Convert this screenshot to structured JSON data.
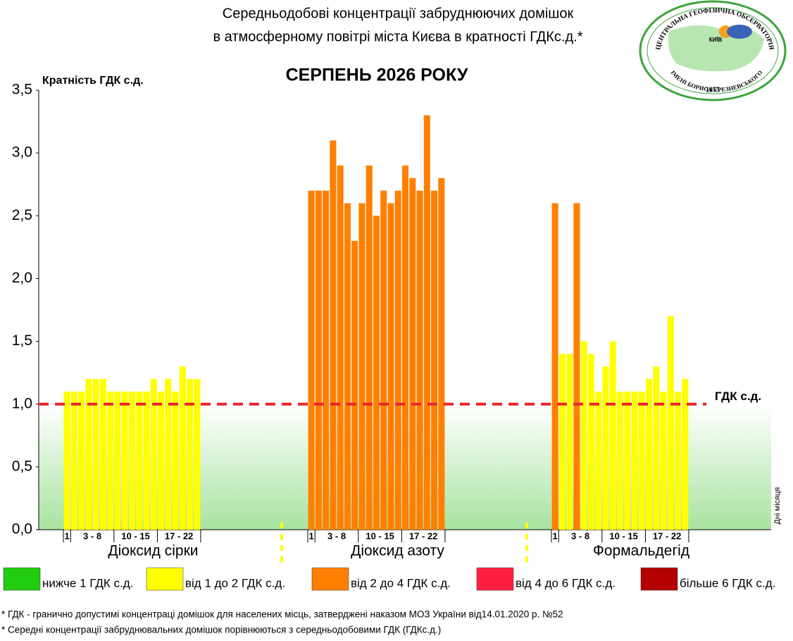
{
  "chart_data": {
    "type": "bar",
    "title": [
      "Середньодобові концентрації забруднюючих домішок",
      "в атмосферному повітрі міста Києва в кратності ГДКс.д.*"
    ],
    "subtitle": "СЕРПЕНЬ 2026 РОКУ",
    "y_label": "Кратність ГДК с.д.",
    "x_label": "Дні місяця",
    "ylim": [
      0,
      3.5
    ],
    "yticks": [
      {
        "value": 0,
        "label": "0,0"
      },
      {
        "value": 0.5,
        "label": "0,5"
      },
      {
        "value": 1,
        "label": "1,0"
      },
      {
        "value": 1.5,
        "label": "1,5"
      },
      {
        "value": 2,
        "label": "2,0"
      },
      {
        "value": 2.5,
        "label": "2,5"
      },
      {
        "value": 3,
        "label": "3,0"
      },
      {
        "value": 3.5,
        "label": "3,5"
      }
    ],
    "reference_line": {
      "value": 1,
      "label": "ГДК с.д.",
      "color": "#e8262a"
    },
    "groups": [
      {
        "name": "Діоксид сірки",
        "day_labels": [
          "1",
          "3 - 8",
          "10 - 15",
          "17 - 22"
        ],
        "values": [
          1.1,
          1.1,
          1.1,
          1.2,
          1.2,
          1.2,
          1.1,
          1.1,
          1.1,
          1.1,
          1.1,
          1.1,
          1.2,
          1.1,
          1.2,
          1.1,
          1.3,
          1.2,
          1.2
        ],
        "colors": [
          "#ffff00",
          "#ffff00",
          "#ffff00",
          "#ffff00",
          "#ffff00",
          "#ffff00",
          "#ffff00",
          "#ffff00",
          "#ffff00",
          "#ffff00",
          "#ffff00",
          "#ffff00",
          "#ffff00",
          "#ffff00",
          "#ffff00",
          "#ffff00",
          "#ffff00",
          "#ffff00",
          "#ffff00"
        ]
      },
      {
        "name": "Діоксид азоту",
        "day_labels": [
          "1",
          "3 - 8",
          "10 - 15",
          "17 - 22"
        ],
        "values": [
          2.7,
          2.7,
          2.7,
          3.1,
          2.9,
          2.6,
          2.3,
          2.6,
          2.9,
          2.5,
          2.7,
          2.6,
          2.7,
          2.9,
          2.8,
          2.7,
          3.3,
          2.7,
          2.8
        ],
        "colors": [
          "#ff8000",
          "#ff8000",
          "#ff8000",
          "#ff8000",
          "#ff8000",
          "#ff8000",
          "#ff8000",
          "#ff8000",
          "#ff8000",
          "#ff8000",
          "#ff8000",
          "#ff8000",
          "#ff8000",
          "#ff8000",
          "#ff8000",
          "#ff8000",
          "#ff8000",
          "#ff8000",
          "#ff8000"
        ]
      },
      {
        "name": "Формальдегід",
        "day_labels": [
          "1",
          "3 - 8",
          "10 - 15",
          "17 - 22"
        ],
        "values": [
          2.6,
          1.4,
          1.4,
          2.6,
          1.5,
          1.4,
          1.1,
          1.3,
          1.5,
          1.1,
          1.1,
          1.1,
          1.1,
          1.2,
          1.3,
          1.1,
          1.7,
          1.1,
          1.2
        ],
        "colors": [
          "#ff8000",
          "#ffff00",
          "#ffff00",
          "#ff8000",
          "#ffff00",
          "#ffff00",
          "#ffff00",
          "#ffff00",
          "#ffff00",
          "#ffff00",
          "#ffff00",
          "#ffff00",
          "#ffff00",
          "#ffff00",
          "#ffff00",
          "#ffff00",
          "#ffff00",
          "#ffff00",
          "#ffff00"
        ]
      }
    ],
    "legend": [
      {
        "label": "нижче 1 ГДК с.д.",
        "color": "#22cc11"
      },
      {
        "label": "від 1 до 2 ГДК с.д.",
        "color": "#ffff00"
      },
      {
        "label": "від 2 до 4 ГДК с.д.",
        "color": "#ff8000"
      },
      {
        "label": "від 4 до 6 ГДК с.д.",
        "color": "#ff1f40"
      },
      {
        "label": "більше 6 ГДК с.д.",
        "color": "#b30000"
      }
    ],
    "footnotes": [
      "* ГДК - гранично допустимі концентраці домішок для населених місць, затверджені наказом МОЗ України від14.01.2020 р. №52",
      "* Середні концентрації забруднювальних домішок порівнюються з середньодобовими  ГДК (ГДКс.д.)"
    ],
    "logo": {
      "top": "ЦЕНТРАЛЬНА ГЕОФІЗИЧНА ОБСЕРВАТОРІЯ",
      "bottom": "ІМЕНІ БОРИСА СРЕЗНЕВСЬКОГО",
      "year": "1855",
      "city": "КИЇВ"
    }
  }
}
